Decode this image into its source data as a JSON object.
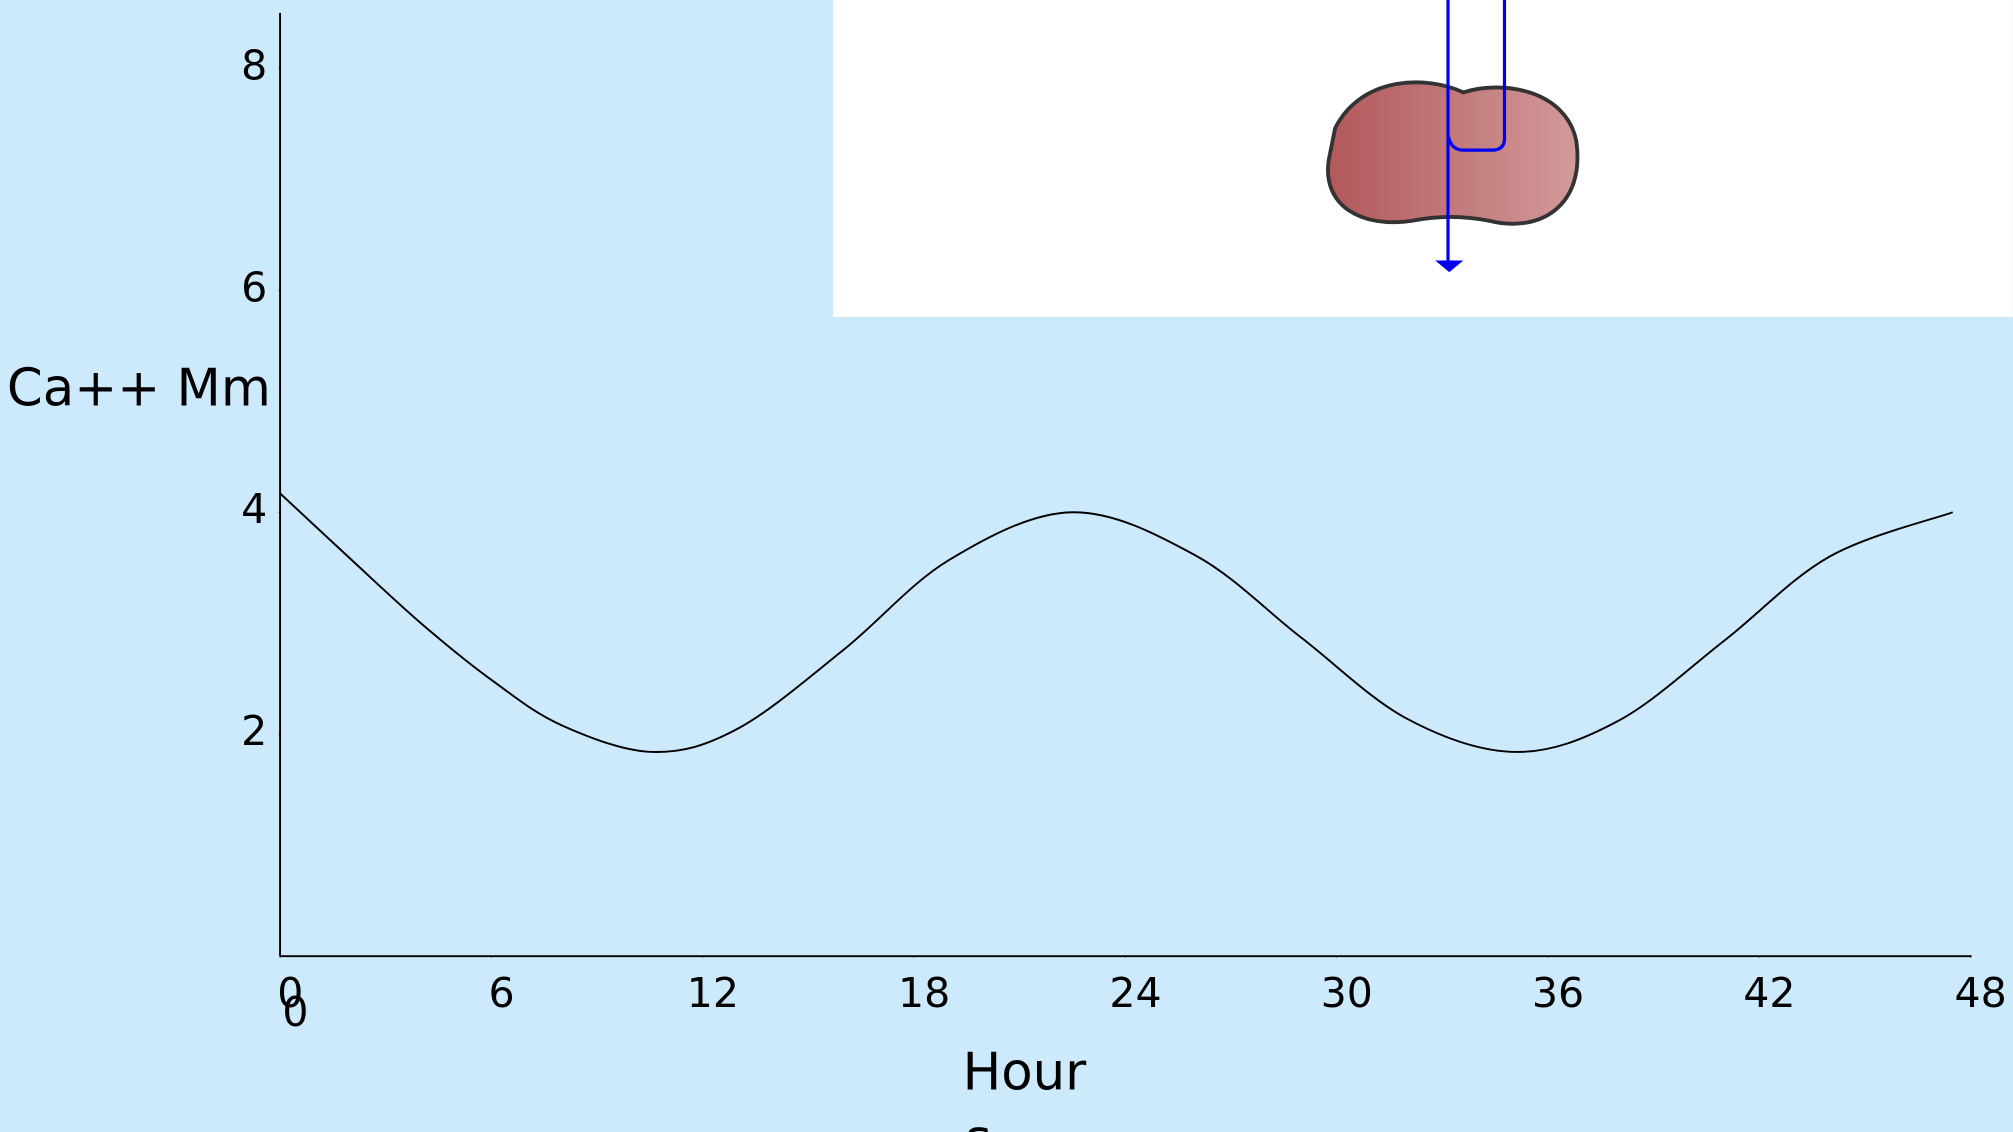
{
  "chart_data": {
    "type": "line",
    "y_label": "Ca++ Mm",
    "x_label": "Hour",
    "x_label_overflow": "s",
    "extra_label": "0",
    "x": [
      0,
      2,
      4,
      6,
      8,
      10.6,
      13,
      16,
      19,
      22.5,
      26,
      29,
      32,
      35.1,
      38,
      41,
      44,
      47.5
    ],
    "series": [
      {
        "color": "#000000",
        "values": [
          4.17,
          3.58,
          3.0,
          2.49,
          2.08,
          1.84,
          2.05,
          2.76,
          3.57,
          4.0,
          3.61,
          2.87,
          2.14,
          1.84,
          2.12,
          2.84,
          3.6,
          4.0
        ]
      }
    ],
    "xlim": [
      0,
      48
    ],
    "xticks": [
      0,
      6,
      12,
      18,
      24,
      30,
      36,
      42,
      48
    ],
    "ylim": [
      0,
      8.5
    ],
    "yticks": [
      2,
      4,
      6,
      8
    ],
    "grid": false
  }
}
